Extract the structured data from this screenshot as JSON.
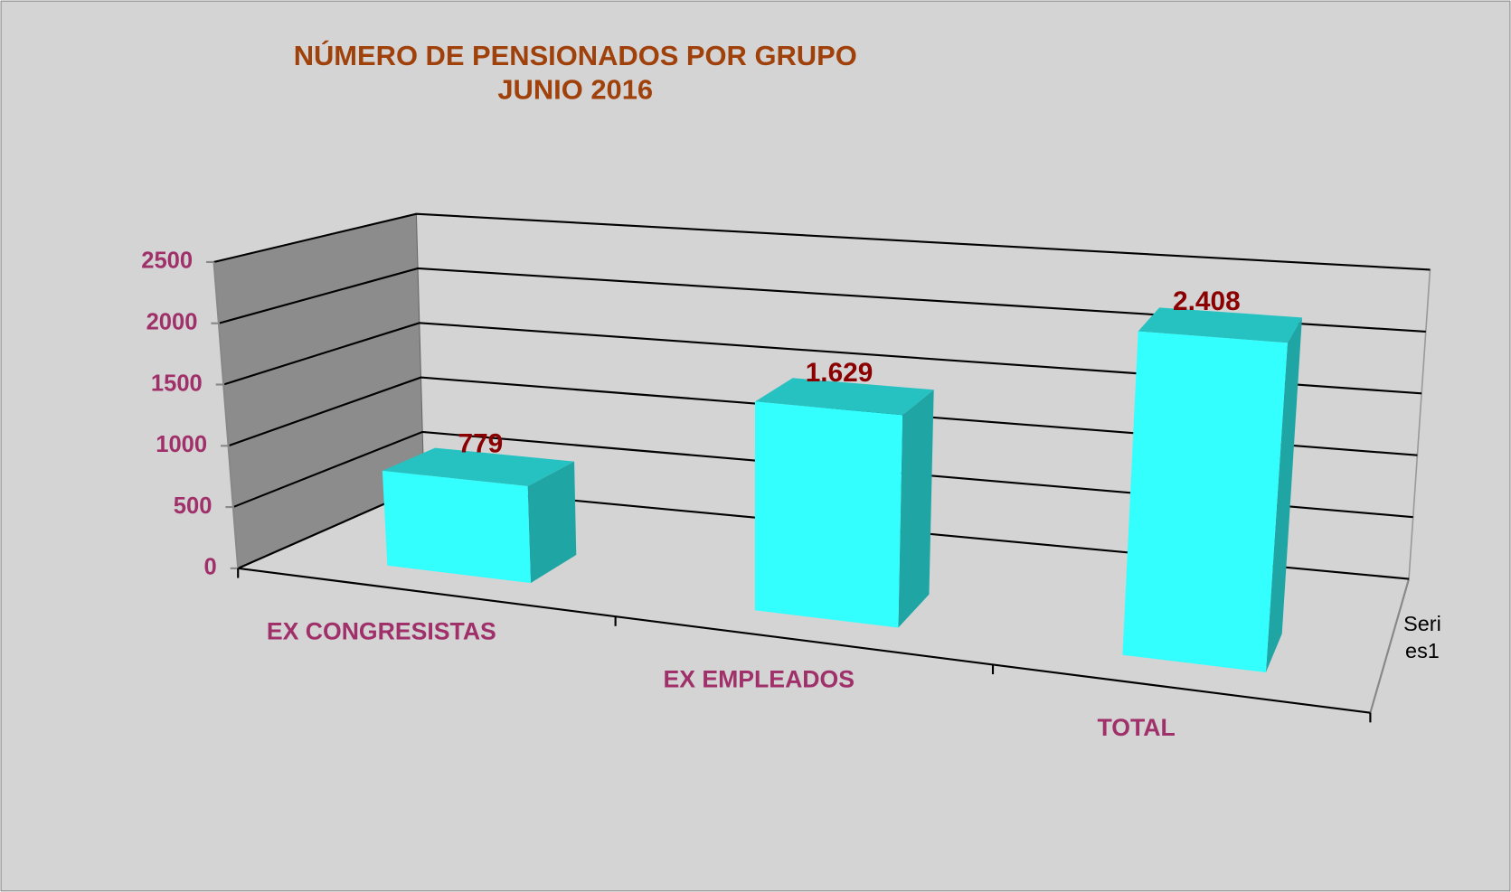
{
  "chart_data": {
    "type": "bar3d",
    "title": "NÚMERO DE PENSIONADOS POR GRUPO",
    "subtitle": "JUNIO 2016",
    "categories": [
      "EX CONGRESISTAS",
      "EX EMPLEADOS",
      "TOTAL"
    ],
    "series": [
      {
        "name": "Series1",
        "color": "#33ffff",
        "values": [
          779,
          1629,
          2408
        ],
        "value_labels": [
          "779",
          "1.629",
          "2.408"
        ]
      }
    ],
    "ylim": [
      0,
      2500
    ],
    "yticks": [
      0,
      500,
      1000,
      1500,
      2000,
      2500
    ],
    "grid": true
  }
}
